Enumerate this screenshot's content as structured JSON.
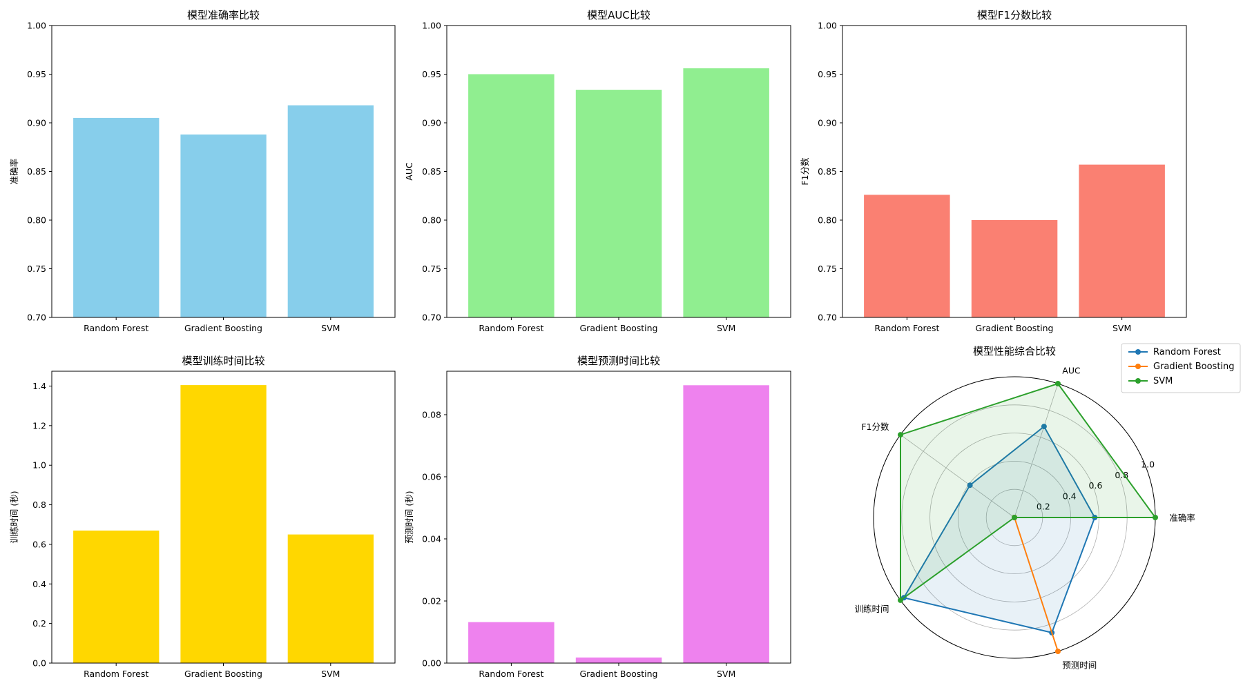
{
  "chart_data": [
    {
      "type": "bar",
      "title": "模型准确率比较",
      "xlabel": "",
      "ylabel": "准确率",
      "categories": [
        "Random Forest",
        "Gradient Boosting",
        "SVM"
      ],
      "values": [
        0.905,
        0.888,
        0.918
      ],
      "ylim": [
        0.7,
        1.0
      ],
      "yticks": [
        "0.70",
        "0.75",
        "0.80",
        "0.85",
        "0.90",
        "0.95",
        "1.00"
      ],
      "color": "#87CEEB"
    },
    {
      "type": "bar",
      "title": "模型AUC比较",
      "xlabel": "",
      "ylabel": "AUC",
      "categories": [
        "Random Forest",
        "Gradient Boosting",
        "SVM"
      ],
      "values": [
        0.95,
        0.934,
        0.956
      ],
      "ylim": [
        0.7,
        1.0
      ],
      "yticks": [
        "0.70",
        "0.75",
        "0.80",
        "0.85",
        "0.90",
        "0.95",
        "1.00"
      ],
      "color": "#90EE90"
    },
    {
      "type": "bar",
      "title": "模型F1分数比较",
      "xlabel": "",
      "ylabel": "F1分数",
      "categories": [
        "Random Forest",
        "Gradient Boosting",
        "SVM"
      ],
      "values": [
        0.826,
        0.8,
        0.857
      ],
      "ylim": [
        0.7,
        1.0
      ],
      "yticks": [
        "0.70",
        "0.75",
        "0.80",
        "0.85",
        "0.90",
        "0.95",
        "1.00"
      ],
      "color": "#FA8072"
    },
    {
      "type": "bar",
      "title": "模型训练时间比较",
      "xlabel": "",
      "ylabel": "训练时间 (秒)",
      "categories": [
        "Random Forest",
        "Gradient Boosting",
        "SVM"
      ],
      "values": [
        0.67,
        1.405,
        0.65
      ],
      "ylim": [
        0,
        1.475
      ],
      "yticks": [
        "0.0",
        "0.2",
        "0.4",
        "0.6",
        "0.8",
        "1.0",
        "1.2",
        "1.4"
      ],
      "color": "#FFD700"
    },
    {
      "type": "bar",
      "title": "模型预测时间比较",
      "xlabel": "",
      "ylabel": "预测时间 (秒)",
      "categories": [
        "Random Forest",
        "Gradient Boosting",
        "SVM"
      ],
      "values": [
        0.0132,
        0.0018,
        0.0895
      ],
      "ylim": [
        0,
        0.094
      ],
      "yticks": [
        "0.00",
        "0.02",
        "0.04",
        "0.06",
        "0.08"
      ],
      "color": "#EE82EE"
    },
    {
      "type": "radar",
      "title": "模型性能综合比较",
      "axes": [
        "准确率",
        "AUC",
        "F1分数",
        "训练时间",
        "预测时间"
      ],
      "rlim": [
        0,
        1.0
      ],
      "rticks": [
        "0.2",
        "0.4",
        "0.6",
        "0.8",
        "1.0"
      ],
      "legend_position": "top-right",
      "series": [
        {
          "name": "Random Forest",
          "color": "#1f77b4",
          "values": [
            0.57,
            0.68,
            0.39,
            0.97,
            0.86
          ]
        },
        {
          "name": "Gradient Boosting",
          "color": "#ff7f0e",
          "values": [
            0.0,
            0.0,
            0.0,
            0.0,
            1.0
          ]
        },
        {
          "name": "SVM",
          "color": "#2ca02c",
          "values": [
            1.0,
            1.0,
            1.0,
            1.0,
            0.0
          ]
        }
      ]
    }
  ]
}
